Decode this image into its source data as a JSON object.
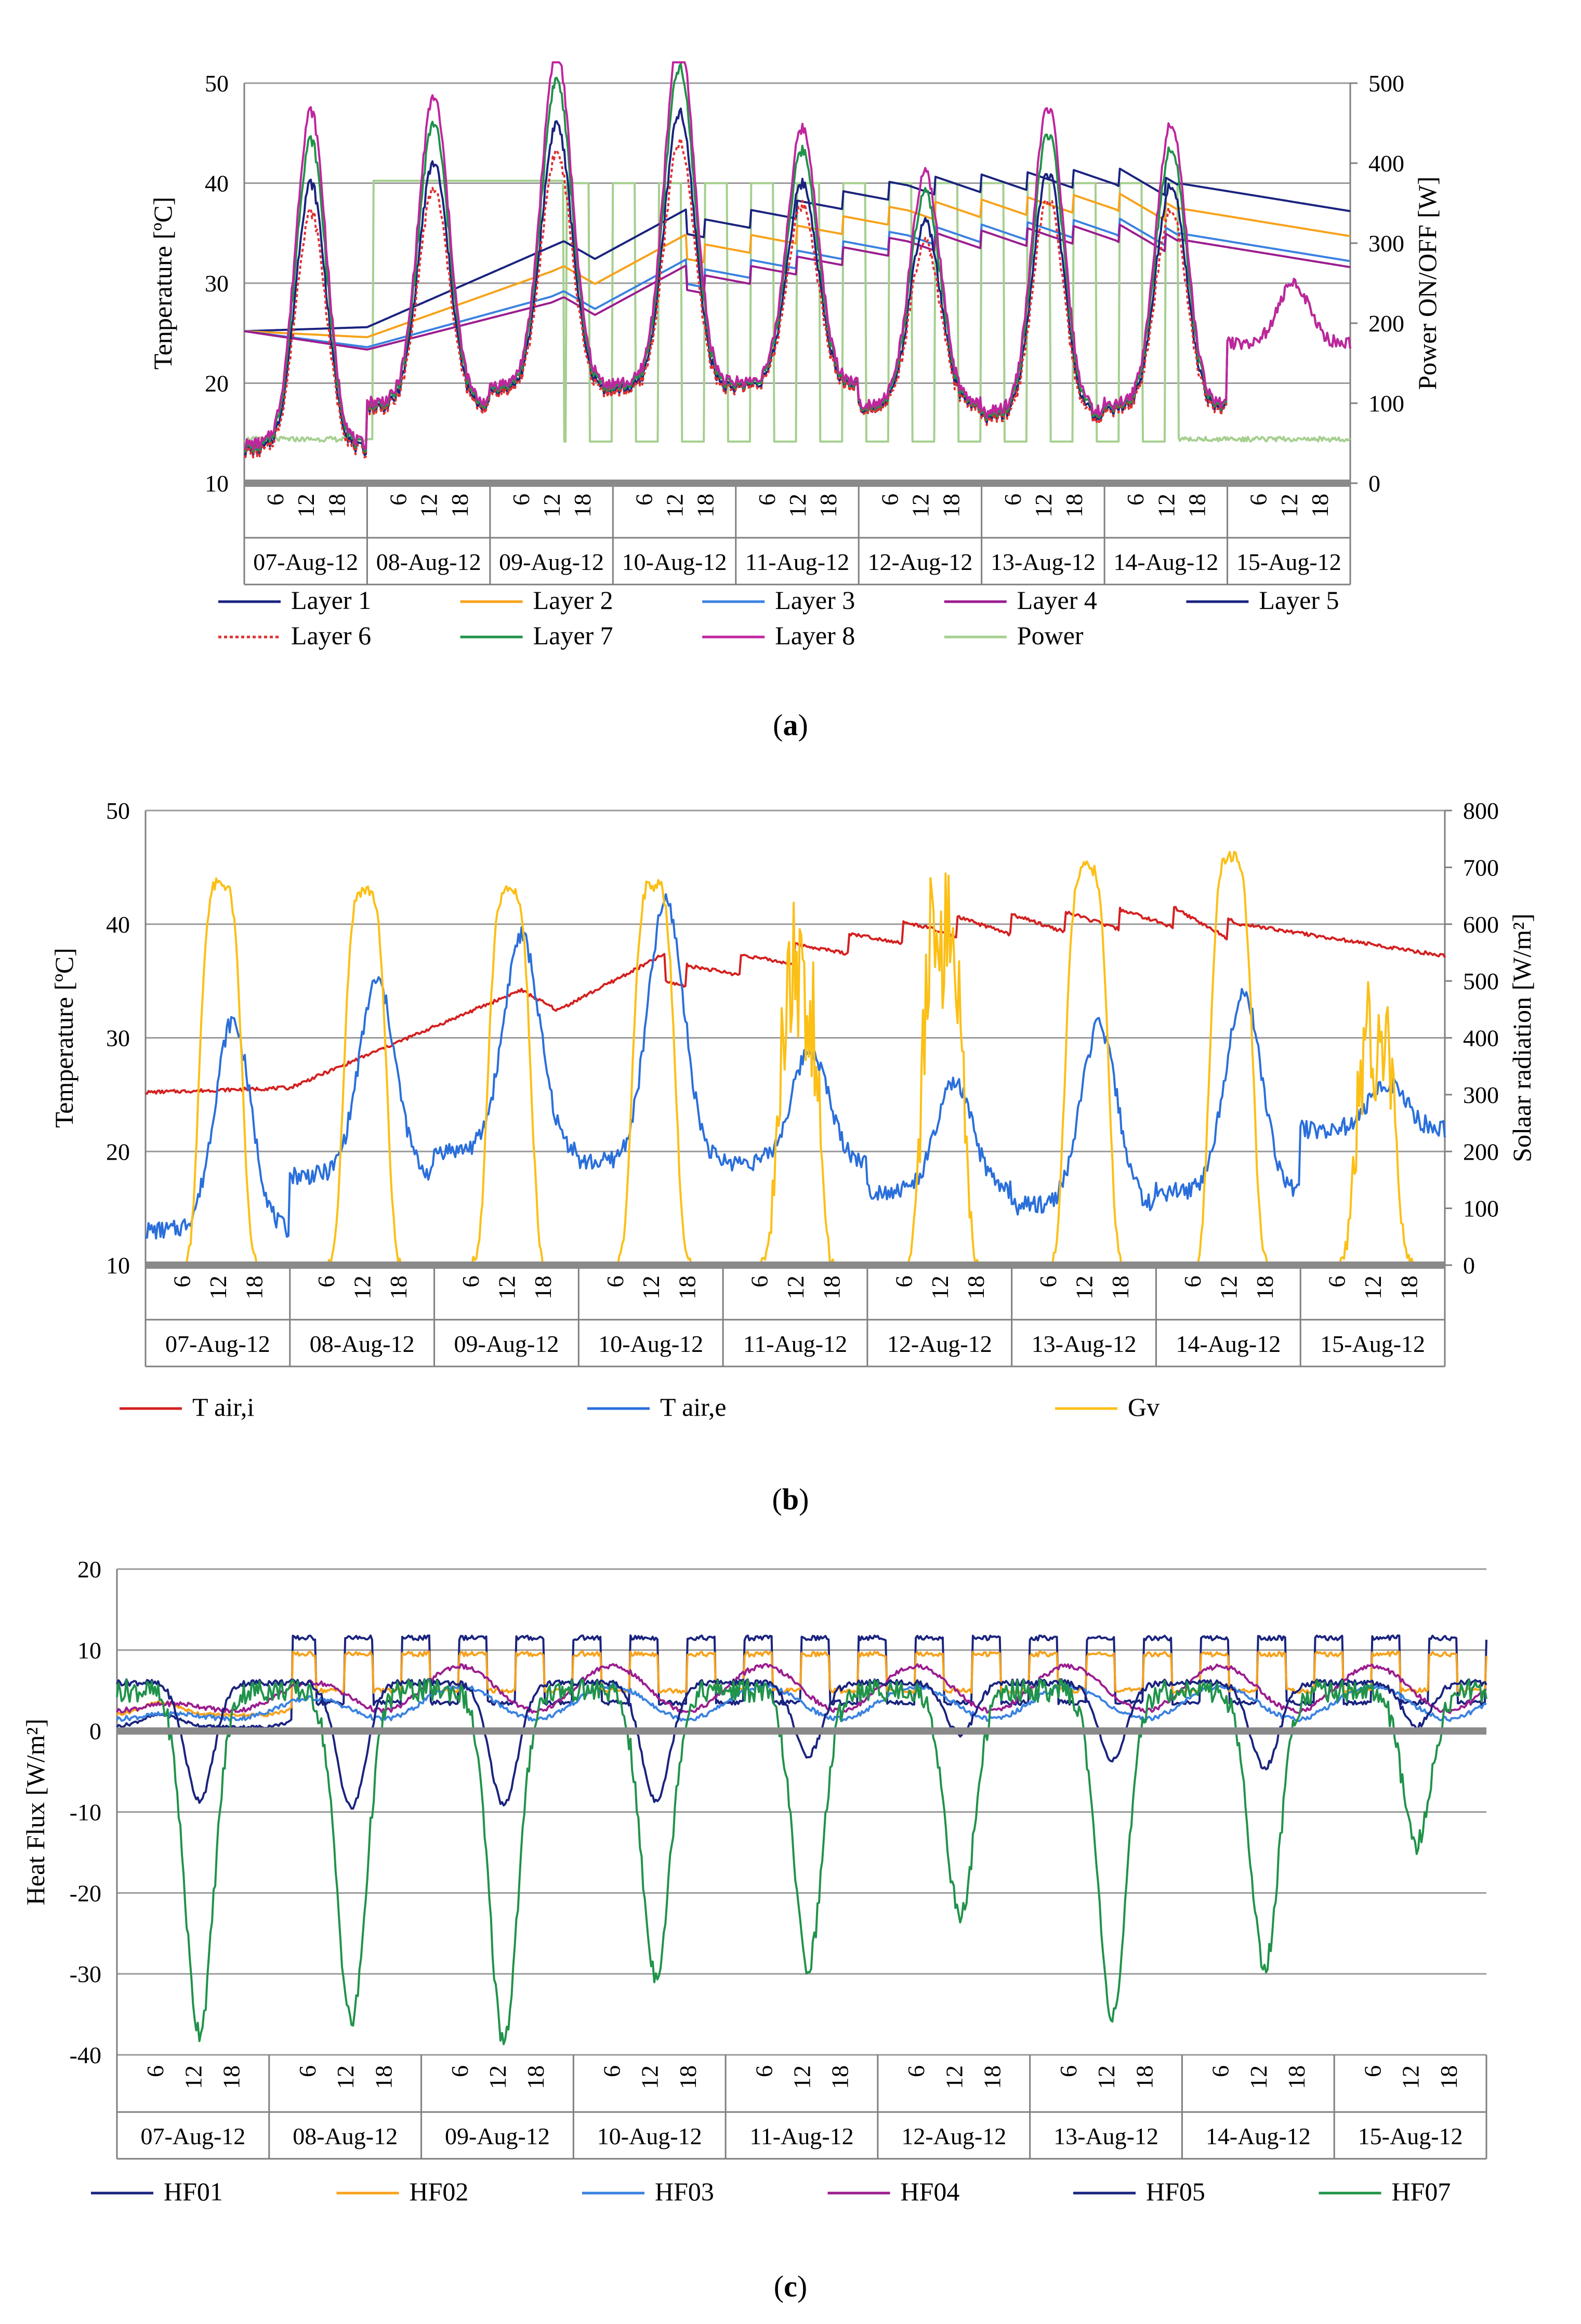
{
  "chart_data": [
    {
      "id": "a",
      "type": "line",
      "panel_label": "a",
      "ylabel": "Tenperature [ºC]",
      "y2label": "Power ON/OFF [W]",
      "ylim": [
        10,
        50
      ],
      "yticks": [
        10,
        20,
        30,
        40,
        50
      ],
      "y2lim": [
        0,
        500
      ],
      "y2ticks": [
        0,
        100,
        200,
        300,
        400,
        500
      ],
      "days": [
        "07-Aug-12",
        "08-Aug-12",
        "09-Aug-12",
        "10-Aug-12",
        "11-Aug-12",
        "12-Aug-12",
        "13-Aug-12",
        "14-Aug-12",
        "15-Aug-12"
      ],
      "hour_ticks": [
        "6",
        "12",
        "18"
      ],
      "grid": true,
      "legend_position": "bottom",
      "series": [
        {
          "name": "Layer 1",
          "color": "#1a237e",
          "kind": "slab_temp",
          "offset": 0.0
        },
        {
          "name": "Layer 2",
          "color": "#f7a21b",
          "kind": "slab_temp",
          "offset": -2.5
        },
        {
          "name": "Layer 3",
          "color": "#3b82e0",
          "kind": "slab_temp",
          "offset": -5.0
        },
        {
          "name": "Layer 4",
          "color": "#9b1d8f",
          "kind": "slab_temp",
          "offset": -5.6
        },
        {
          "name": "Layer 5",
          "color": "#1a237e",
          "kind": "air_temp",
          "amp": 1.0
        },
        {
          "name": "Layer 6",
          "color": "#e03030",
          "kind": "air_temp",
          "amp": 0.9
        },
        {
          "name": "Layer 7",
          "color": "#20934a",
          "kind": "air_temp",
          "amp": 1.15
        },
        {
          "name": "Layer 8",
          "color": "#c0259e",
          "kind": "air_temp",
          "amp": 1.25
        },
        {
          "name": "Power",
          "color": "#a5cf8f",
          "kind": "power"
        }
      ]
    },
    {
      "id": "b",
      "type": "line",
      "panel_label": "b",
      "ylabel": "Temperature [ºC]",
      "y2label": "Solaar radiation [W/m²]",
      "ylim": [
        10,
        50
      ],
      "yticks": [
        10,
        20,
        30,
        40,
        50
      ],
      "y2lim": [
        0,
        800
      ],
      "y2ticks": [
        0,
        100,
        200,
        300,
        400,
        500,
        600,
        700,
        800
      ],
      "days": [
        "07-Aug-12",
        "08-Aug-12",
        "09-Aug-12",
        "10-Aug-12",
        "11-Aug-12",
        "12-Aug-12",
        "13-Aug-12",
        "14-Aug-12",
        "15-Aug-12"
      ],
      "hour_ticks": [
        "6",
        "12",
        "18"
      ],
      "grid": true,
      "legend_position": "bottom",
      "series": [
        {
          "name": "T air,i",
          "color": "#d42020",
          "kind": "indoor"
        },
        {
          "name": "T air,e",
          "color": "#2a6fdb",
          "kind": "outdoor"
        },
        {
          "name": "Gv",
          "color": "#fbbf16",
          "kind": "solar",
          "peaks": [
            670,
            660,
            660,
            670,
            650,
            740,
            700,
            720,
            500
          ]
        }
      ]
    },
    {
      "id": "c",
      "type": "line",
      "panel_label": "c",
      "ylabel": "Heat Flux [W/m²]",
      "ylim": [
        -40,
        20
      ],
      "yticks": [
        -40,
        -30,
        -20,
        -10,
        0,
        10,
        20
      ],
      "days": [
        "07-Aug-12",
        "08-Aug-12",
        "09-Aug-12",
        "10-Aug-12",
        "11-Aug-12",
        "12-Aug-12",
        "13-Aug-12",
        "14-Aug-12",
        "15-Aug-12"
      ],
      "hour_ticks": [
        "6",
        "12",
        "18"
      ],
      "grid": true,
      "legend_position": "bottom",
      "series": [
        {
          "name": "HF01",
          "color": "#1a237e",
          "kind": "hf_plateau",
          "low": 0.5,
          "high": 11.5
        },
        {
          "name": "HF02",
          "color": "#f7a21b",
          "kind": "hf_plateau",
          "low": 2.0,
          "high": 9.5
        },
        {
          "name": "HF03",
          "color": "#3b82e0",
          "kind": "hf_smooth",
          "base": 1.5,
          "top": 5.5
        },
        {
          "name": "HF04",
          "color": "#9b1d8f",
          "kind": "hf_smooth",
          "base": 2.5,
          "top": 8.0
        },
        {
          "name": "HF05",
          "color": "#1a237e",
          "kind": "hf_dip",
          "peak": 6,
          "mins": [
            -8.5,
            -9.5,
            -9.0,
            -8.5,
            -3.0,
            -0.5,
            -3.5,
            -4.5,
            0.5
          ]
        },
        {
          "name": "HF07",
          "color": "#20934a",
          "kind": "hf_dip",
          "peak": 5,
          "mins": [
            -37,
            -36,
            -38,
            -30,
            -29,
            -23,
            -35,
            -29,
            -14
          ]
        }
      ]
    }
  ]
}
